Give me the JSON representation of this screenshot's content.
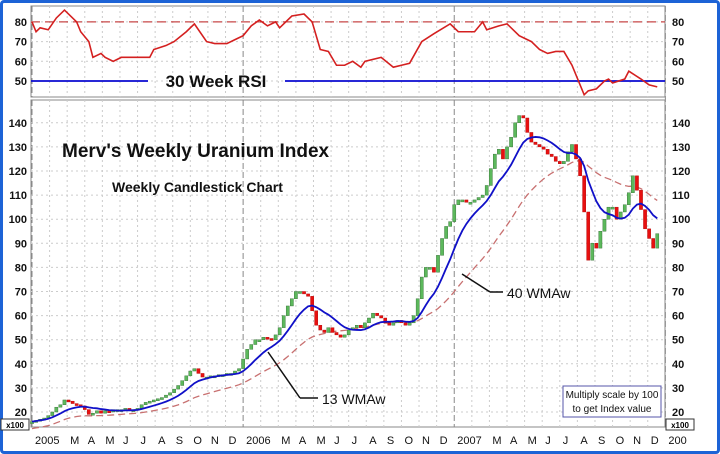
{
  "chart_data": {
    "type": "candlestick",
    "title": "Merv's Weekly Uranium Index",
    "subtitle": "Weekly Candlestick Chart",
    "note": [
      "Multiply scale by 100",
      "to get Index value"
    ],
    "scale_tag": "x100",
    "rsi_panel": {
      "label": "30 Week RSI",
      "ylim": [
        40,
        90
      ],
      "ticks": [
        "80",
        "70",
        "60",
        "50"
      ],
      "tick_values": [
        80,
        70,
        60,
        50
      ],
      "overbought": 80,
      "midline": 50,
      "points": [
        [
          0,
          80
        ],
        [
          1,
          75
        ],
        [
          2,
          77
        ],
        [
          4,
          76
        ],
        [
          6,
          82
        ],
        [
          8,
          86
        ],
        [
          11,
          80
        ],
        [
          12,
          75
        ],
        [
          14,
          70
        ],
        [
          15,
          62
        ],
        [
          17,
          64
        ],
        [
          18,
          62
        ],
        [
          20,
          60
        ],
        [
          22,
          62
        ],
        [
          25,
          62
        ],
        [
          29,
          62
        ],
        [
          30,
          66
        ],
        [
          33,
          68
        ],
        [
          35,
          70
        ],
        [
          38,
          75
        ],
        [
          40,
          79
        ],
        [
          43,
          70
        ],
        [
          45,
          69
        ],
        [
          48,
          69
        ],
        [
          50,
          71
        ],
        [
          52,
          73
        ],
        [
          54,
          78
        ],
        [
          56,
          81
        ],
        [
          58,
          78
        ],
        [
          60,
          80
        ],
        [
          61,
          77
        ],
        [
          64,
          83
        ],
        [
          67,
          84
        ],
        [
          69,
          80
        ],
        [
          71,
          66
        ],
        [
          73,
          65
        ],
        [
          75,
          58
        ],
        [
          77,
          58
        ],
        [
          79,
          60
        ],
        [
          81,
          57
        ],
        [
          82,
          60
        ],
        [
          86,
          62
        ],
        [
          89,
          57
        ],
        [
          91,
          58
        ],
        [
          93,
          59
        ],
        [
          96,
          70
        ],
        [
          99,
          74
        ],
        [
          103,
          79
        ],
        [
          105,
          75
        ],
        [
          109,
          75
        ],
        [
          111,
          80
        ],
        [
          112,
          76
        ],
        [
          115,
          78
        ],
        [
          117,
          79
        ],
        [
          120,
          73
        ],
        [
          123,
          70
        ],
        [
          125,
          66
        ],
        [
          127,
          64
        ],
        [
          129,
          65
        ],
        [
          131,
          65
        ],
        [
          133,
          58
        ],
        [
          136,
          43
        ],
        [
          137,
          45
        ],
        [
          139,
          46
        ],
        [
          141,
          50
        ],
        [
          142,
          51
        ],
        [
          143,
          49
        ],
        [
          146,
          51
        ],
        [
          147,
          55
        ],
        [
          150,
          51
        ],
        [
          152,
          48
        ],
        [
          154,
          47
        ]
      ]
    },
    "price_panel": {
      "ylim": [
        15,
        150
      ],
      "ticks": [
        "140",
        "130",
        "120",
        "110",
        "100",
        "90",
        "80",
        "70",
        "60",
        "50",
        "40",
        "30",
        "20"
      ],
      "tick_values": [
        140,
        130,
        120,
        110,
        100,
        90,
        80,
        70,
        60,
        50,
        40,
        30,
        20
      ],
      "weekly_close": [
        16,
        16.5,
        17,
        17.5,
        18.5,
        20,
        22,
        23,
        25,
        24.5,
        23.5,
        23,
        22.5,
        21,
        19,
        19.5,
        20.5,
        19.5,
        20.5,
        20,
        21,
        21,
        21,
        21.5,
        21,
        21,
        21.5,
        23,
        24,
        24.5,
        25,
        25.5,
        26,
        27,
        28,
        29.5,
        31,
        33,
        35,
        37,
        38,
        36,
        34.5,
        34.5,
        35,
        35,
        35.5,
        35.5,
        36,
        36,
        37,
        38,
        42,
        46,
        48,
        50,
        50,
        51,
        50.5,
        50,
        52,
        55,
        60,
        64,
        67,
        70,
        70,
        69,
        68,
        62,
        56,
        54,
        53,
        55,
        53,
        52,
        51,
        52,
        54,
        55,
        56,
        55,
        57,
        59,
        61,
        60,
        59,
        57,
        56,
        57,
        58,
        57,
        56,
        57,
        60,
        67,
        76,
        80,
        80,
        78,
        85,
        92,
        97,
        99,
        106,
        108,
        108,
        107,
        107,
        108,
        109,
        110,
        114,
        121,
        127,
        129,
        125,
        130,
        134,
        140,
        143,
        142,
        136,
        132,
        131,
        130,
        129,
        127,
        126,
        124,
        123,
        124,
        128,
        131,
        125,
        118,
        103,
        83,
        90,
        88,
        95,
        100,
        105,
        105,
        100,
        103,
        106,
        111,
        118,
        112,
        104,
        96,
        92,
        88,
        94
      ],
      "series": [
        {
          "name": "13 WMAw",
          "period": 13,
          "color": "#1010c8"
        },
        {
          "name": "40 WMAw",
          "period": 40,
          "color": "#c87070"
        }
      ]
    },
    "x_labels": [
      "2005",
      "M",
      "A",
      "M",
      "J",
      "J",
      "A",
      "S",
      "O",
      "N",
      "D",
      "2006",
      "M",
      "A",
      "M",
      "J",
      "J",
      "A",
      "S",
      "O",
      "N",
      "D",
      "2007",
      "M",
      "A",
      "M",
      "J",
      "J",
      "A",
      "S",
      "O",
      "N",
      "D",
      "200"
    ],
    "colors": {
      "up": "#5cb85c",
      "down": "#e81010",
      "rsi": "#d42020",
      "frame": "#1d63d6"
    }
  }
}
